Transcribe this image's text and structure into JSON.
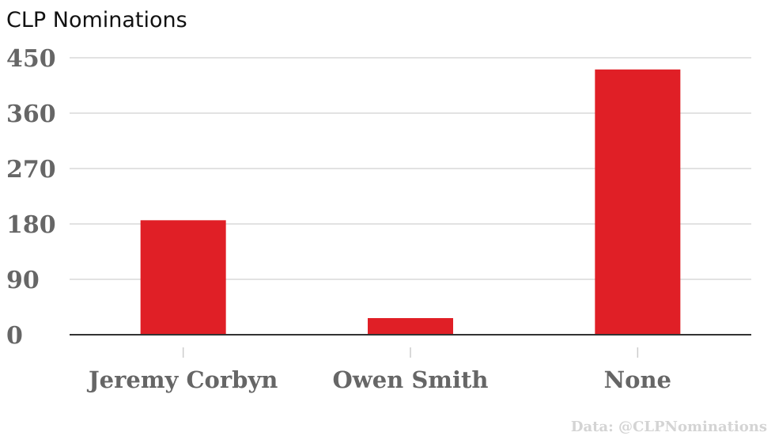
{
  "chart_data": {
    "type": "bar",
    "title": "CLP Nominations",
    "xlabel": "",
    "ylabel": "",
    "categories": [
      "Jeremy Corbyn",
      "Owen Smith",
      "None"
    ],
    "values": [
      186,
      27,
      431
    ],
    "ylim": [
      0,
      450
    ],
    "yticks": [
      0,
      90,
      180,
      270,
      360,
      450
    ],
    "grid": true,
    "legend": "none",
    "bar_color": "#e01f26",
    "source": "Data: @CLPNominations"
  }
}
